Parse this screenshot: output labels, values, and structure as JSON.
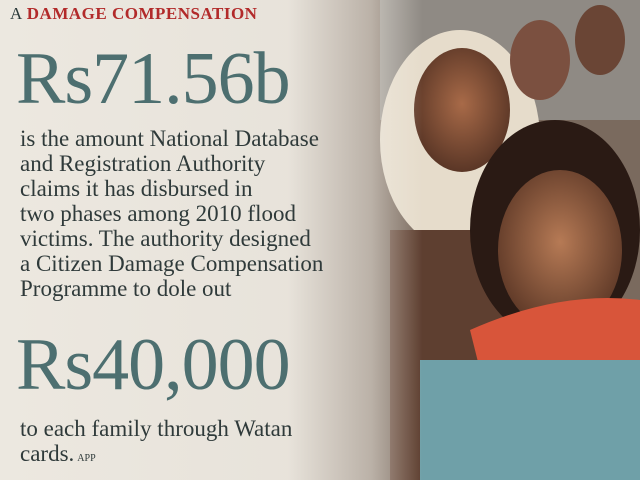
{
  "header": {
    "kicker": "A",
    "title": "DAMAGE COMPENSATION"
  },
  "figure_1": "Rs71.56b",
  "paragraph_1": [
    "is the amount National Database",
    "and Registration Authority",
    "claims it has disbursed in",
    "two phases among 2010 flood",
    "victims. The authority designed",
    "a Citizen Damage Compensation",
    "Programme to dole out"
  ],
  "figure_2": "Rs40,000",
  "paragraph_2": [
    "to each family through Watan",
    "cards."
  ],
  "credit": "APP"
}
